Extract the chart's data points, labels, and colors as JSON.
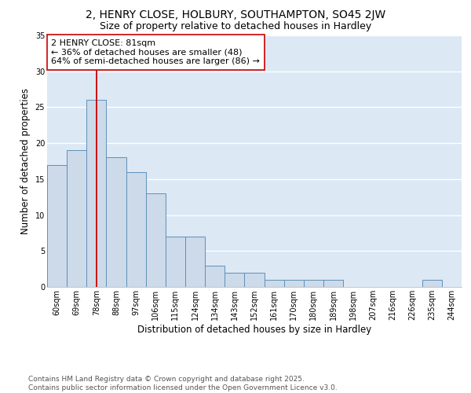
{
  "title1": "2, HENRY CLOSE, HOLBURY, SOUTHAMPTON, SO45 2JW",
  "title2": "Size of property relative to detached houses in Hardley",
  "xlabel": "Distribution of detached houses by size in Hardley",
  "ylabel": "Number of detached properties",
  "categories": [
    "60sqm",
    "69sqm",
    "78sqm",
    "88sqm",
    "97sqm",
    "106sqm",
    "115sqm",
    "124sqm",
    "134sqm",
    "143sqm",
    "152sqm",
    "161sqm",
    "170sqm",
    "180sqm",
    "189sqm",
    "198sqm",
    "207sqm",
    "216sqm",
    "226sqm",
    "235sqm",
    "244sqm"
  ],
  "values": [
    17,
    19,
    26,
    18,
    16,
    13,
    7,
    7,
    3,
    2,
    2,
    1,
    1,
    1,
    1,
    0,
    0,
    0,
    0,
    1,
    0
  ],
  "bar_color": "#ccdaea",
  "bar_edge_color": "#6090b8",
  "highlight_x": "78sqm",
  "highlight_color": "#cc0000",
  "annotation_text": "2 HENRY CLOSE: 81sqm\n← 36% of detached houses are smaller (48)\n64% of semi-detached houses are larger (86) →",
  "annotation_box_color": "#ffffff",
  "annotation_box_edge": "#cc0000",
  "ylim": [
    0,
    35
  ],
  "yticks": [
    0,
    5,
    10,
    15,
    20,
    25,
    30,
    35
  ],
  "background_color": "#dce8f4",
  "footer": "Contains HM Land Registry data © Crown copyright and database right 2025.\nContains public sector information licensed under the Open Government Licence v3.0.",
  "title_fontsize": 10,
  "subtitle_fontsize": 9,
  "axis_label_fontsize": 8.5,
  "tick_fontsize": 7,
  "annotation_fontsize": 8,
  "footer_fontsize": 6.5
}
